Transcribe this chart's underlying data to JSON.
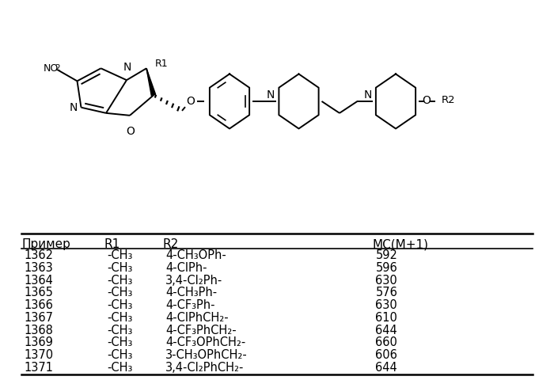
{
  "background_color": "#ffffff",
  "table_headers": [
    "Пример",
    "R1",
    "R2",
    "МС(М+1)"
  ],
  "table_data": [
    [
      "1362",
      "-CH₃",
      "4-CH₃OPh-",
      "592"
    ],
    [
      "1363",
      "-CH₃",
      "4-ClPh-",
      "596"
    ],
    [
      "1364",
      "-CH₃",
      "3,4-Cl₂Ph-",
      "630"
    ],
    [
      "1365",
      "-CH₃",
      "4-CH₃Ph-",
      "576"
    ],
    [
      "1366",
      "-CH₃",
      "4-CF₃Ph-",
      "630"
    ],
    [
      "1367",
      "-CH₃",
      "4-ClPhCH₂-",
      "610"
    ],
    [
      "1368",
      "-CH₃",
      "4-CF₃PhCH₂-",
      "644"
    ],
    [
      "1369",
      "-CH₃",
      "4-CF₃OPhCH₂-",
      "660"
    ],
    [
      "1370",
      "-CH₃",
      "3-CH₃OPhCH₂-",
      "606"
    ],
    [
      "1371",
      "-CH₃",
      "3,4-Cl₂PhCH₂-",
      "644"
    ]
  ],
  "font_size": 10.5,
  "header_font_size": 11
}
